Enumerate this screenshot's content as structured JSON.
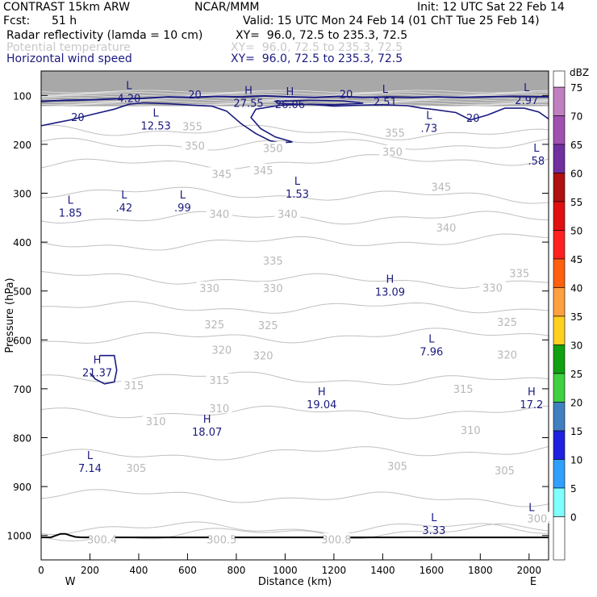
{
  "header": {
    "model": "CONTRAST 15km ARW",
    "org": "NCAR/MMM",
    "init": "Init: 12 UTC Sat 22 Feb 14",
    "fcst_label": "Fcst:",
    "fcst_value": "51 h",
    "valid": "Valid: 15 UTC Mon 24 Feb 14 (01 ChT Tue 25 Feb 14)",
    "fields": [
      {
        "name": "Radar reflectivity (lamda = 10 cm)",
        "xy": "XY=  96.0, 72.5 to 235.3, 72.5",
        "color": "#000000"
      },
      {
        "name": "Potential temperature",
        "xy": "XY=  96.0, 72.5 to 235.3, 72.5",
        "color": "#c8c8c8"
      },
      {
        "name": "Horizontal wind speed",
        "xy": "XY=  96.0, 72.5 to 235.3, 72.5",
        "color": "#1a1a80"
      }
    ]
  },
  "chart_data": {
    "type": "contour",
    "xlabel": "Distance (km)",
    "ylabel": "Pressure (hPa)",
    "xlim": [
      0,
      2080
    ],
    "ylim": [
      1050,
      50
    ],
    "x_ticks": [
      0,
      200,
      400,
      600,
      800,
      1000,
      1200,
      1400,
      1600,
      1800,
      2000
    ],
    "y_ticks": [
      100,
      200,
      300,
      400,
      500,
      600,
      700,
      800,
      900,
      1000
    ],
    "x_end_labels": {
      "left": "W",
      "right": "E"
    },
    "theta_labels": [
      {
        "text": "355",
        "x": 620,
        "p": 163
      },
      {
        "text": "355",
        "x": 1450,
        "p": 176
      },
      {
        "text": "350",
        "x": 630,
        "p": 203
      },
      {
        "text": "350",
        "x": 950,
        "p": 208
      },
      {
        "text": "350",
        "x": 1440,
        "p": 215
      },
      {
        "text": "345",
        "x": 740,
        "p": 260
      },
      {
        "text": "345",
        "x": 910,
        "p": 253
      },
      {
        "text": "345",
        "x": 1640,
        "p": 287
      },
      {
        "text": "340",
        "x": 730,
        "p": 342
      },
      {
        "text": "340",
        "x": 1010,
        "p": 342
      },
      {
        "text": "340",
        "x": 1660,
        "p": 370
      },
      {
        "text": "335",
        "x": 950,
        "p": 438
      },
      {
        "text": "335",
        "x": 1960,
        "p": 463
      },
      {
        "text": "330",
        "x": 690,
        "p": 494
      },
      {
        "text": "330",
        "x": 950,
        "p": 494
      },
      {
        "text": "330",
        "x": 1850,
        "p": 493
      },
      {
        "text": "325",
        "x": 710,
        "p": 568
      },
      {
        "text": "325",
        "x": 930,
        "p": 570
      },
      {
        "text": "325",
        "x": 1910,
        "p": 563
      },
      {
        "text": "320",
        "x": 740,
        "p": 620
      },
      {
        "text": "320",
        "x": 910,
        "p": 632
      },
      {
        "text": "320",
        "x": 1910,
        "p": 630
      },
      {
        "text": "315",
        "x": 730,
        "p": 682
      },
      {
        "text": "315",
        "x": 1730,
        "p": 700
      },
      {
        "text": "315",
        "x": 380,
        "p": 693
      },
      {
        "text": "310",
        "x": 730,
        "p": 740
      },
      {
        "text": "310",
        "x": 470,
        "p": 766
      },
      {
        "text": "310",
        "x": 1760,
        "p": 784
      },
      {
        "text": "305",
        "x": 390,
        "p": 862
      },
      {
        "text": "305",
        "x": 1460,
        "p": 858
      },
      {
        "text": "305",
        "x": 1900,
        "p": 867
      },
      {
        "text": "300.4",
        "x": 250,
        "p": 1008
      },
      {
        "text": "300.5",
        "x": 740,
        "p": 1008
      },
      {
        "text": "300.8",
        "x": 1210,
        "p": 1008
      },
      {
        "text": "300.",
        "x": 2040,
        "p": 965
      }
    ],
    "wind_isotach_labels": [
      {
        "text": "20",
        "x": 630,
        "p": 98
      },
      {
        "text": "20",
        "x": 1250,
        "p": 97
      },
      {
        "text": "20",
        "x": 150,
        "p": 144
      },
      {
        "text": "20",
        "x": 1770,
        "p": 146
      }
    ],
    "extrema": [
      {
        "type": "L",
        "value": "4.20",
        "x": 360,
        "p": 94
      },
      {
        "type": "H",
        "value": "27.55",
        "x": 850,
        "p": 104
      },
      {
        "type": "H",
        "value": "26.06",
        "x": 1020,
        "p": 106
      },
      {
        "type": "L",
        "value": "2.51",
        "x": 1410,
        "p": 101
      },
      {
        "type": "L",
        "value": "2.97",
        "x": 1990,
        "p": 98
      },
      {
        "type": "L",
        "value": "12.53",
        "x": 470,
        "p": 150
      },
      {
        "type": "L",
        "value": ".73",
        "x": 1590,
        "p": 155
      },
      {
        "type": "L",
        "value": ".58",
        "x": 2030,
        "p": 222
      },
      {
        "type": "L",
        "value": "1.53",
        "x": 1050,
        "p": 289
      },
      {
        "type": "L",
        "value": ".42",
        "x": 340,
        "p": 317
      },
      {
        "type": "L",
        "value": ".99",
        "x": 580,
        "p": 317
      },
      {
        "type": "L",
        "value": "1.85",
        "x": 120,
        "p": 328
      },
      {
        "type": "H",
        "value": "13.09",
        "x": 1430,
        "p": 490
      },
      {
        "type": "L",
        "value": "7.96",
        "x": 1600,
        "p": 612
      },
      {
        "type": "H",
        "value": "21.37",
        "x": 230,
        "p": 655
      },
      {
        "type": "H",
        "value": "19.04",
        "x": 1150,
        "p": 720
      },
      {
        "type": "H",
        "value": "17.2",
        "x": 2010,
        "p": 720
      },
      {
        "type": "H",
        "value": "18.07",
        "x": 680,
        "p": 776
      },
      {
        "type": "L",
        "value": "7.14",
        "x": 200,
        "p": 850
      },
      {
        "type": "L",
        "value": "3.33",
        "x": 1610,
        "p": 977
      },
      {
        "type": "L",
        "value": "",
        "x": 2010,
        "p": 957
      }
    ],
    "colorbar": {
      "unit": "dBZ",
      "levels": [
        {
          "value": "75",
          "color": "#c080c0"
        },
        {
          "value": "70",
          "color": "#a050b0"
        },
        {
          "value": "65",
          "color": "#7030a0"
        },
        {
          "value": "60",
          "color": "#b01010"
        },
        {
          "value": "55",
          "color": "#e01010"
        },
        {
          "value": "50",
          "color": "#ff2020"
        },
        {
          "value": "45",
          "color": "#ff6010"
        },
        {
          "value": "40",
          "color": "#ffa040"
        },
        {
          "value": "35",
          "color": "#ffd020"
        },
        {
          "value": "30",
          "color": "#10a010"
        },
        {
          "value": "25",
          "color": "#40d040"
        },
        {
          "value": "20",
          "color": "#4080c0"
        },
        {
          "value": "15",
          "color": "#2020e0"
        },
        {
          "value": "10",
          "color": "#30a0ff"
        },
        {
          "value": "5",
          "color": "#80ffff"
        },
        {
          "value": "0",
          "color": "#ffffff"
        }
      ]
    }
  }
}
